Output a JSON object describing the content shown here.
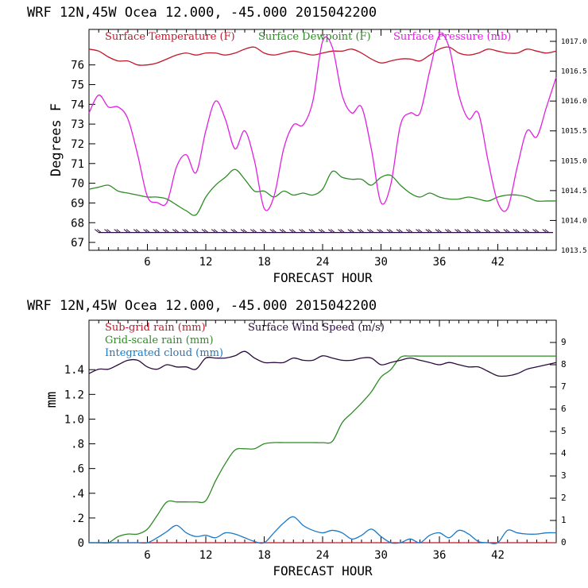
{
  "chart_data": [
    {
      "type": "line",
      "header": "WRF   12N,45W Ocea  12.000, -45.000  2015042200",
      "xlabel": "FORECAST HOUR",
      "ylabel": "Degrees F",
      "xlim": [
        0,
        48
      ],
      "xticks": [
        "6",
        "12",
        "18",
        "24",
        "30",
        "36",
        "42"
      ],
      "xtick_values": [
        6,
        12,
        18,
        24,
        30,
        36,
        42
      ],
      "ylim_left": [
        66.6,
        77.8
      ],
      "yticks_left": [
        "67",
        "68",
        "69",
        "70",
        "71",
        "72",
        "73",
        "74",
        "75",
        "76"
      ],
      "ytick_left_values": [
        67,
        68,
        69,
        70,
        71,
        72,
        73,
        74,
        75,
        76
      ],
      "ylim_right": [
        1013.5,
        1017.2
      ],
      "yticks_right": [
        "1013.5",
        "1014.0",
        "1014.5",
        "1015.0",
        "1015.5",
        "1016.0",
        "1016.5",
        "1017.0"
      ],
      "ytick_right_values": [
        1013.5,
        1014.0,
        1014.5,
        1015.0,
        1015.5,
        1016.0,
        1016.5,
        1017.0
      ],
      "series": [
        {
          "name": "Surface Temperature (F)",
          "axis": "left",
          "color": "#c0182a",
          "x": [
            0,
            1,
            2,
            3,
            4,
            5,
            6,
            7,
            8,
            9,
            10,
            11,
            12,
            13,
            14,
            15,
            16,
            17,
            18,
            19,
            20,
            21,
            22,
            23,
            24,
            25,
            26,
            27,
            28,
            29,
            30,
            31,
            32,
            33,
            34,
            35,
            36,
            37,
            38,
            39,
            40,
            41,
            42,
            43,
            44,
            45,
            46,
            47,
            48
          ],
          "values": [
            76.8,
            76.7,
            76.4,
            76.2,
            76.2,
            76.0,
            76.0,
            76.1,
            76.3,
            76.5,
            76.6,
            76.5,
            76.6,
            76.6,
            76.5,
            76.6,
            76.8,
            76.9,
            76.6,
            76.5,
            76.6,
            76.7,
            76.6,
            76.5,
            76.6,
            76.7,
            76.7,
            76.8,
            76.6,
            76.3,
            76.1,
            76.2,
            76.3,
            76.3,
            76.2,
            76.5,
            76.8,
            76.9,
            76.6,
            76.5,
            76.6,
            76.8,
            76.7,
            76.6,
            76.6,
            76.8,
            76.7,
            76.6,
            76.7
          ]
        },
        {
          "name": "Surface Dewpoint (F)",
          "axis": "left",
          "color": "#2e8b24",
          "x": [
            0,
            1,
            2,
            3,
            4,
            5,
            6,
            7,
            8,
            9,
            10,
            11,
            12,
            13,
            14,
            15,
            16,
            17,
            18,
            19,
            20,
            21,
            22,
            23,
            24,
            25,
            26,
            27,
            28,
            29,
            30,
            31,
            32,
            33,
            34,
            35,
            36,
            37,
            38,
            39,
            40,
            41,
            42,
            43,
            44,
            45,
            46,
            47,
            48
          ],
          "values": [
            69.7,
            69.8,
            69.9,
            69.6,
            69.5,
            69.4,
            69.3,
            69.3,
            69.2,
            68.9,
            68.6,
            68.4,
            69.3,
            69.9,
            70.3,
            70.7,
            70.2,
            69.6,
            69.6,
            69.3,
            69.6,
            69.4,
            69.5,
            69.4,
            69.7,
            70.6,
            70.3,
            70.2,
            70.2,
            69.9,
            70.3,
            70.4,
            69.9,
            69.5,
            69.3,
            69.5,
            69.3,
            69.2,
            69.2,
            69.3,
            69.2,
            69.1,
            69.3,
            69.4,
            69.4,
            69.3,
            69.1,
            69.1,
            69.1
          ]
        },
        {
          "name": "Surface Pressure (mb)",
          "axis": "right",
          "color": "#e020e0",
          "x": [
            0,
            1,
            2,
            3,
            4,
            5,
            6,
            7,
            8,
            9,
            10,
            11,
            12,
            13,
            14,
            15,
            16,
            17,
            18,
            19,
            20,
            21,
            22,
            23,
            24,
            25,
            26,
            27,
            28,
            29,
            30,
            31,
            32,
            33,
            34,
            35,
            36,
            37,
            38,
            39,
            40,
            41,
            42,
            43,
            44,
            45,
            46,
            47,
            48
          ],
          "values": [
            1015.8,
            1016.1,
            1015.9,
            1015.9,
            1015.7,
            1015.1,
            1014.4,
            1014.3,
            1014.3,
            1014.9,
            1015.1,
            1014.8,
            1015.5,
            1016.0,
            1015.7,
            1015.2,
            1015.5,
            1015.0,
            1014.2,
            1014.4,
            1015.2,
            1015.6,
            1015.6,
            1016.0,
            1017.0,
            1016.9,
            1016.1,
            1015.8,
            1015.9,
            1015.2,
            1014.3,
            1014.6,
            1015.6,
            1015.8,
            1015.8,
            1016.5,
            1017.1,
            1016.9,
            1016.1,
            1015.7,
            1015.8,
            1015.0,
            1014.3,
            1014.2,
            1014.9,
            1015.5,
            1015.4,
            1015.9,
            1016.4
          ]
        },
        {
          "name": "Wind Barbs",
          "axis": "left",
          "color": "#2a0a3a",
          "marker": "barb",
          "values": [
            67.5
          ]
        }
      ]
    },
    {
      "type": "line",
      "header": "WRF   12N,45W Ocea  12.000, -45.000  2015042200",
      "xlabel": "FORECAST HOUR",
      "ylabel": "mm",
      "xlim": [
        0,
        48
      ],
      "xticks": [
        "6",
        "12",
        "18",
        "24",
        "30",
        "36",
        "42"
      ],
      "xtick_values": [
        6,
        12,
        18,
        24,
        30,
        36,
        42
      ],
      "ylim_left": [
        0,
        1.8
      ],
      "yticks_left": [
        "0",
        ".2",
        ".4",
        ".6",
        ".8",
        "1.0",
        "1.2",
        "1.4"
      ],
      "ytick_left_values": [
        0,
        0.2,
        0.4,
        0.6,
        0.8,
        1.0,
        1.2,
        1.4
      ],
      "ylim_right": [
        0,
        10
      ],
      "yticks_right": [
        "0",
        "1",
        "2",
        "3",
        "4",
        "5",
        "6",
        "7",
        "8",
        "9"
      ],
      "ytick_right_values": [
        0,
        1,
        2,
        3,
        4,
        5,
        6,
        7,
        8,
        9
      ],
      "series": [
        {
          "name": "Sub-grid rain (mm)",
          "axis": "left",
          "color": "#c0182a",
          "x": [
            0,
            48
          ],
          "values": [
            0,
            0
          ]
        },
        {
          "name": "Grid-scale rain (mm)",
          "axis": "left",
          "color": "#2e8b24",
          "x": [
            0,
            1,
            2,
            3,
            4,
            5,
            6,
            7,
            8,
            9,
            10,
            11,
            12,
            13,
            14,
            15,
            16,
            17,
            18,
            19,
            20,
            21,
            22,
            23,
            24,
            25,
            26,
            27,
            28,
            29,
            30,
            31,
            32,
            33,
            34,
            35,
            36,
            37,
            38,
            39,
            40,
            41,
            42,
            43,
            44,
            45,
            46,
            47,
            48
          ],
          "values": [
            0,
            0,
            0,
            0.05,
            0.07,
            0.07,
            0.11,
            0.22,
            0.33,
            0.33,
            0.33,
            0.33,
            0.34,
            0.5,
            0.64,
            0.75,
            0.76,
            0.76,
            0.8,
            0.81,
            0.81,
            0.81,
            0.81,
            0.81,
            0.81,
            0.82,
            0.97,
            1.05,
            1.13,
            1.22,
            1.34,
            1.4,
            1.5,
            1.51,
            1.51,
            1.51,
            1.51,
            1.51,
            1.51,
            1.51,
            1.51,
            1.51,
            1.51,
            1.51,
            1.51,
            1.51,
            1.51,
            1.51,
            1.51
          ]
        },
        {
          "name": "Integrated cloud (mm)",
          "axis": "left",
          "color": "#1a78c8",
          "x": [
            0,
            1,
            2,
            3,
            4,
            5,
            6,
            7,
            8,
            9,
            10,
            11,
            12,
            13,
            14,
            15,
            16,
            17,
            18,
            19,
            20,
            21,
            22,
            23,
            24,
            25,
            26,
            27,
            28,
            29,
            30,
            31,
            32,
            33,
            34,
            35,
            36,
            37,
            38,
            39,
            40,
            41,
            42,
            43,
            44,
            45,
            46,
            47,
            48
          ],
          "values": [
            0,
            0,
            0,
            0,
            0,
            0,
            0,
            0.04,
            0.09,
            0.14,
            0.08,
            0.05,
            0.06,
            0.04,
            0.08,
            0.07,
            0.04,
            0.01,
            0,
            0.08,
            0.16,
            0.21,
            0.14,
            0.1,
            0.08,
            0.1,
            0.08,
            0.03,
            0.06,
            0.11,
            0.05,
            0,
            0,
            0.03,
            0,
            0.06,
            0.08,
            0.04,
            0.1,
            0.07,
            0.01,
            0,
            0,
            0.1,
            0.08,
            0.07,
            0.07,
            0.08,
            0.08
          ]
        },
        {
          "name": "Surface Wind Speed (m/s)",
          "axis": "right",
          "color": "#2a0a3a",
          "x": [
            0,
            1,
            2,
            3,
            4,
            5,
            6,
            7,
            8,
            9,
            10,
            11,
            12,
            13,
            14,
            15,
            16,
            17,
            18,
            19,
            20,
            21,
            22,
            23,
            24,
            25,
            26,
            27,
            28,
            29,
            30,
            31,
            32,
            33,
            34,
            35,
            36,
            37,
            38,
            39,
            40,
            41,
            42,
            43,
            44,
            45,
            46,
            47,
            48
          ],
          "values": [
            7.6,
            7.8,
            7.8,
            8.0,
            8.2,
            8.2,
            7.9,
            7.8,
            8.0,
            7.9,
            7.9,
            7.8,
            8.3,
            8.3,
            8.3,
            8.4,
            8.6,
            8.3,
            8.1,
            8.1,
            8.1,
            8.3,
            8.2,
            8.2,
            8.4,
            8.3,
            8.2,
            8.2,
            8.3,
            8.3,
            8.0,
            8.1,
            8.2,
            8.3,
            8.2,
            8.1,
            8.0,
            8.1,
            8.0,
            7.9,
            7.9,
            7.7,
            7.5,
            7.5,
            7.6,
            7.8,
            7.9,
            8.0,
            8.1
          ]
        }
      ]
    }
  ]
}
